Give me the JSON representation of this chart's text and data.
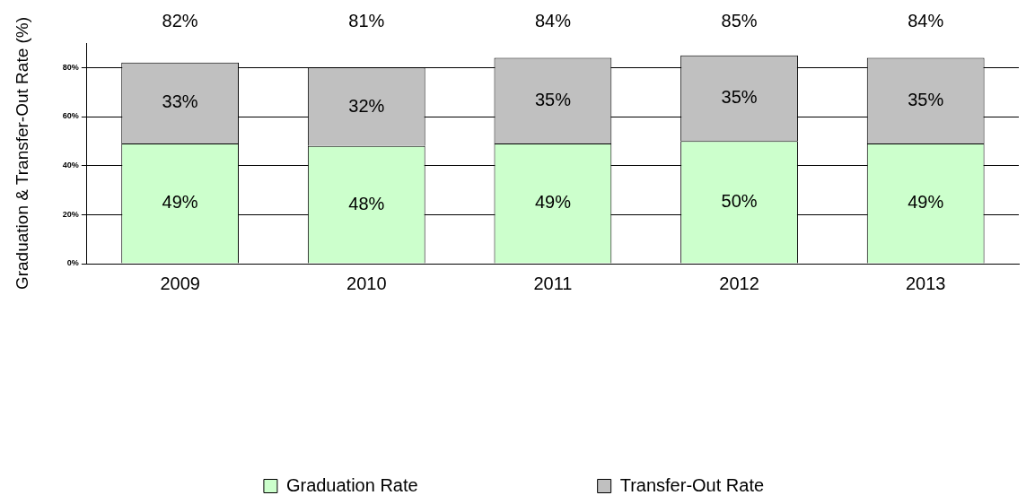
{
  "chart_data": {
    "type": "bar",
    "stacked": true,
    "ylabel": "Graduation & Transfer-Out Rate (%)",
    "categories": [
      "2009",
      "2010",
      "2011",
      "2012",
      "2013"
    ],
    "series": [
      {
        "name": "Graduation Rate",
        "color": "#ccffcc",
        "values": [
          49,
          48,
          49,
          50,
          49
        ],
        "value_labels": [
          "49%",
          "48%",
          "49%",
          "50%",
          "49%"
        ]
      },
      {
        "name": "Transfer-Out Rate",
        "color": "#c0c0c0",
        "values": [
          33,
          32,
          35,
          35,
          35
        ],
        "value_labels": [
          "33%",
          "32%",
          "35%",
          "35%",
          "35%"
        ]
      }
    ],
    "totals": [
      "82%",
      "81%",
      "84%",
      "85%",
      "84%"
    ],
    "ylim": [
      0,
      90
    ],
    "yticks": [
      {
        "value": 0,
        "label": "0%"
      },
      {
        "value": 20,
        "label": "20%"
      },
      {
        "value": 40,
        "label": "40%"
      },
      {
        "value": 60,
        "label": "60%"
      },
      {
        "value": 80,
        "label": "80%"
      }
    ],
    "grid": "y",
    "legend": "bottom"
  }
}
